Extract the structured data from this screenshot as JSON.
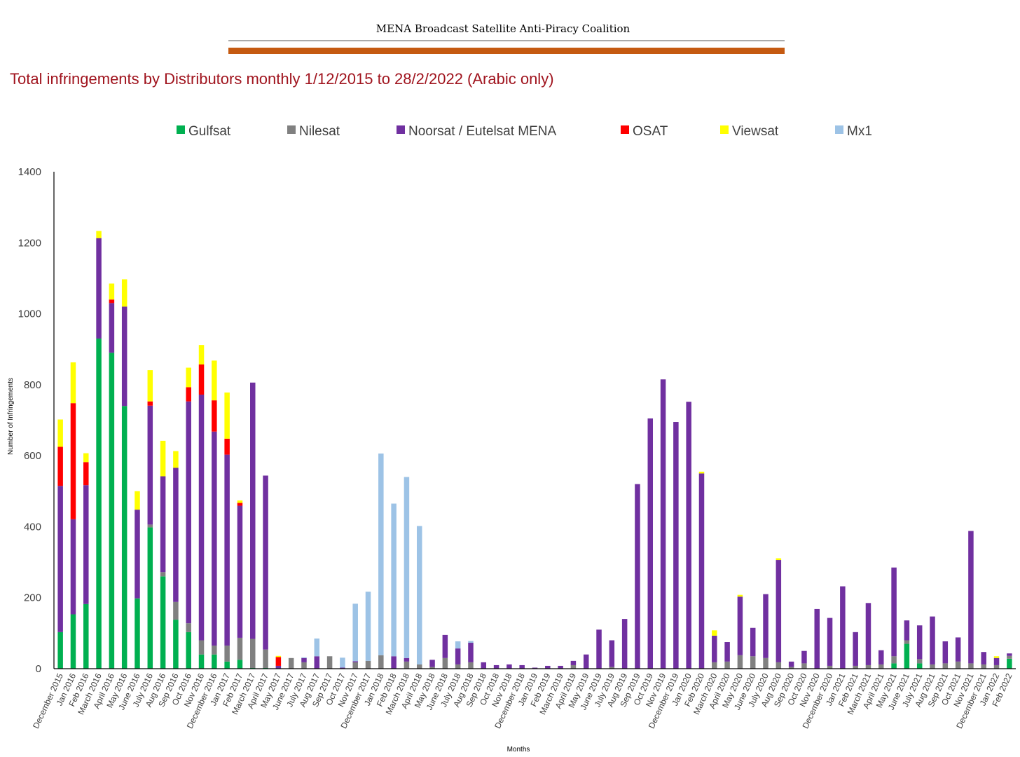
{
  "header": {
    "coalition": "MENA Broadcast Satellite  Anti-Piracy Coalition",
    "rule_color": "#c55a11"
  },
  "chart_data": {
    "type": "bar",
    "stacked": true,
    "title": "Total infringements by Distributors monthly 1/12/2015 to 28/2/2022 (Arabic only)",
    "xlabel": "Months",
    "ylabel": "Number of Infringements",
    "ylim": [
      0,
      1400
    ],
    "yticks": [
      0,
      200,
      400,
      600,
      800,
      1000,
      1200,
      1400
    ],
    "legend_position": "top",
    "grid": false,
    "categories": [
      "December 2015",
      "Jan 2016",
      "Feb 2016",
      "March 2016",
      "April 2016",
      "May 2016",
      "June 2016",
      "July 2016",
      "Aug 2016",
      "Sep 2016",
      "Oct 2016",
      "Nov 2016",
      "December 2016",
      "Jan 2017",
      "Feb 2017",
      "March 2017",
      "April 2017",
      "May 2017",
      "June 2017",
      "July 2017",
      "Aug 2017",
      "Sep 2017",
      "Oct 2017",
      "Nov 2017",
      "December 2017",
      "Jan 2018",
      "Feb 2018",
      "March 2018",
      "April 2018",
      "May 2018",
      "June 2018",
      "July 2018",
      "Aug 2018",
      "Sep 2018",
      "Oct 2018",
      "Nov 2018",
      "December 2018",
      "Jan 2019",
      "Feb 2019",
      "March 2019",
      "April 2019",
      "May 2019",
      "June 2019",
      "July 2019",
      "Aug 2019",
      "Sep 2019",
      "Oct 2019",
      "Nov 2019",
      "December 2019",
      "Jan 2020",
      "Feb 2020",
      "March 2020",
      "April 2020",
      "May 2020",
      "June 2020",
      "July 2020",
      "Aug 2020",
      "Sep 2020",
      "Oct 2020",
      "Nov 2020",
      "December 2020",
      "Jan 2021",
      "Feb 2021",
      "March 2021",
      "April 2021",
      "May 2021",
      "June 2021",
      "July 2021",
      "Aug 2021",
      "Sep 2021",
      "Oct 2021",
      "Nov 2021",
      "December 2021",
      "Jan 2022",
      "Feb 2022"
    ],
    "series": [
      {
        "name": "Gulfsat",
        "color": "#00b050",
        "values": [
          103,
          153,
          182,
          930,
          890,
          740,
          198,
          398,
          260,
          138,
          103,
          40,
          40,
          20,
          25,
          2,
          2,
          0,
          0,
          0,
          0,
          0,
          0,
          0,
          0,
          0,
          0,
          0,
          0,
          0,
          0,
          0,
          0,
          0,
          0,
          0,
          0,
          0,
          0,
          0,
          0,
          0,
          0,
          0,
          0,
          0,
          0,
          0,
          0,
          0,
          0,
          0,
          0,
          0,
          0,
          0,
          0,
          0,
          0,
          0,
          0,
          0,
          0,
          0,
          0,
          15,
          70,
          15,
          0,
          0,
          0,
          0,
          0,
          0,
          28
        ]
      },
      {
        "name": "Nilesat",
        "color": "#808080",
        "values": [
          0,
          0,
          0,
          0,
          0,
          0,
          0,
          8,
          12,
          50,
          25,
          40,
          25,
          45,
          62,
          82,
          52,
          0,
          30,
          18,
          0,
          35,
          0,
          18,
          22,
          38,
          0,
          20,
          12,
          5,
          30,
          12,
          18,
          0,
          0,
          0,
          0,
          0,
          0,
          0,
          10,
          0,
          0,
          5,
          0,
          0,
          0,
          0,
          0,
          0,
          0,
          18,
          20,
          38,
          35,
          30,
          18,
          5,
          15,
          0,
          8,
          0,
          8,
          10,
          12,
          20,
          10,
          12,
          12,
          15,
          20,
          15,
          12,
          10,
          8
        ]
      },
      {
        "name": "Noorsat / Eutelsat MENA",
        "color": "#7030a0",
        "values": [
          412,
          268,
          335,
          283,
          140,
          280,
          250,
          335,
          270,
          378,
          625,
          692,
          603,
          538,
          372,
          722,
          490,
          8,
          0,
          12,
          35,
          0,
          3,
          3,
          0,
          0,
          35,
          10,
          0,
          20,
          65,
          45,
          55,
          18,
          10,
          12,
          10,
          3,
          8,
          8,
          12,
          40,
          110,
          75,
          140,
          520,
          705,
          815,
          695,
          752,
          550,
          75,
          55,
          165,
          80,
          180,
          288,
          15,
          35,
          168,
          135,
          232,
          95,
          175,
          40,
          250,
          56,
          95,
          135,
          62,
          68,
          373,
          35,
          20,
          7
        ]
      },
      {
        "name": "OSAT",
        "color": "#ff0000",
        "values": [
          110,
          327,
          65,
          0,
          10,
          0,
          0,
          12,
          0,
          0,
          40,
          85,
          88,
          45,
          8,
          0,
          0,
          25,
          0,
          0,
          0,
          0,
          0,
          0,
          0,
          0,
          0,
          0,
          0,
          0,
          0,
          0,
          0,
          0,
          0,
          0,
          0,
          0,
          0,
          0,
          0,
          0,
          0,
          0,
          0,
          0,
          0,
          0,
          0,
          0,
          0,
          0,
          0,
          0,
          0,
          0,
          0,
          0,
          0,
          0,
          0,
          0,
          0,
          0,
          0,
          0,
          0,
          0,
          0,
          0,
          0,
          0,
          0,
          0,
          0
        ]
      },
      {
        "name": "Viewsat",
        "color": "#ffff00",
        "values": [
          77,
          115,
          25,
          20,
          45,
          77,
          52,
          88,
          100,
          47,
          55,
          55,
          112,
          130,
          7,
          0,
          0,
          3,
          0,
          0,
          0,
          0,
          0,
          0,
          0,
          0,
          0,
          0,
          0,
          0,
          0,
          0,
          0,
          0,
          0,
          0,
          0,
          0,
          0,
          0,
          0,
          0,
          0,
          0,
          0,
          0,
          0,
          0,
          0,
          0,
          5,
          15,
          0,
          5,
          0,
          0,
          5,
          0,
          0,
          0,
          0,
          0,
          0,
          0,
          0,
          0,
          0,
          0,
          0,
          0,
          0,
          0,
          0,
          5,
          0
        ]
      },
      {
        "name": "Mx1",
        "color": "#9dc3e6",
        "values": [
          0,
          0,
          0,
          0,
          0,
          0,
          0,
          0,
          0,
          0,
          0,
          0,
          0,
          0,
          0,
          0,
          0,
          0,
          0,
          2,
          50,
          0,
          28,
          162,
          195,
          568,
          430,
          510,
          390,
          0,
          0,
          20,
          5,
          0,
          0,
          0,
          0,
          0,
          0,
          0,
          0,
          0,
          0,
          0,
          0,
          0,
          0,
          0,
          0,
          0,
          0,
          0,
          0,
          0,
          0,
          0,
          0,
          0,
          0,
          0,
          0,
          0,
          0,
          0,
          0,
          0,
          0,
          0,
          0,
          0,
          0,
          0,
          0,
          0,
          0
        ]
      }
    ]
  }
}
